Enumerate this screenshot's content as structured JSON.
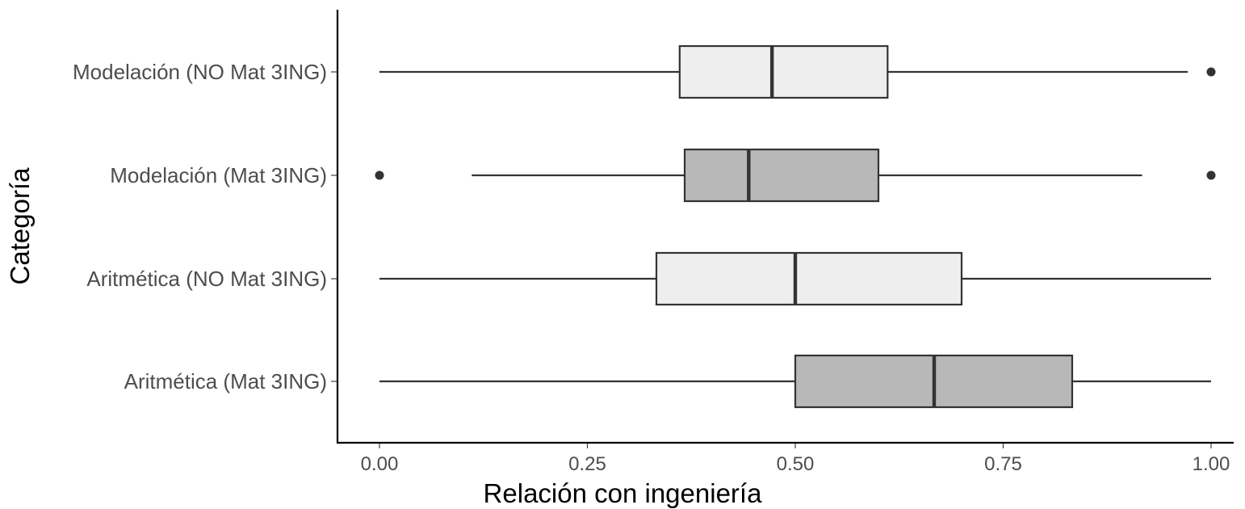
{
  "chart_data": {
    "type": "boxplot",
    "orientation": "horizontal",
    "xlabel": "Relación con ingeniería",
    "ylabel": "Categoría",
    "xlim": [
      0,
      1
    ],
    "x_ticks": [
      "0.00",
      "0.25",
      "0.50",
      "0.75",
      "1.00"
    ],
    "x_tick_values": [
      0,
      0.25,
      0.5,
      0.75,
      1.0
    ],
    "grid": false,
    "categories": [
      "Modelación (NO Mat 3ING)",
      "Modelación (Mat 3ING)",
      "Aritmética (NO Mat 3ING)",
      "Aritmética (Mat 3ING)"
    ],
    "boxes": [
      {
        "category": "Modelación (NO Mat 3ING)",
        "whisker_low": 0.0,
        "q1": 0.361,
        "median": 0.472,
        "q3": 0.611,
        "whisker_high": 0.972,
        "outliers": [
          1.0
        ],
        "fill": "#eeeeee"
      },
      {
        "category": "Modelación (Mat 3ING)",
        "whisker_low": 0.111,
        "q1": 0.367,
        "median": 0.444,
        "q3": 0.6,
        "whisker_high": 0.917,
        "outliers": [
          0.0,
          1.0
        ],
        "fill": "#b8b8b8"
      },
      {
        "category": "Aritmética (NO Mat 3ING)",
        "whisker_low": 0.0,
        "q1": 0.333,
        "median": 0.5,
        "q3": 0.7,
        "whisker_high": 1.0,
        "outliers": [],
        "fill": "#eeeeee"
      },
      {
        "category": "Aritmética (Mat 3ING)",
        "whisker_low": 0.0,
        "q1": 0.5,
        "median": 0.667,
        "q3": 0.833,
        "whisker_high": 1.0,
        "outliers": [],
        "fill": "#b8b8b8"
      }
    ]
  }
}
